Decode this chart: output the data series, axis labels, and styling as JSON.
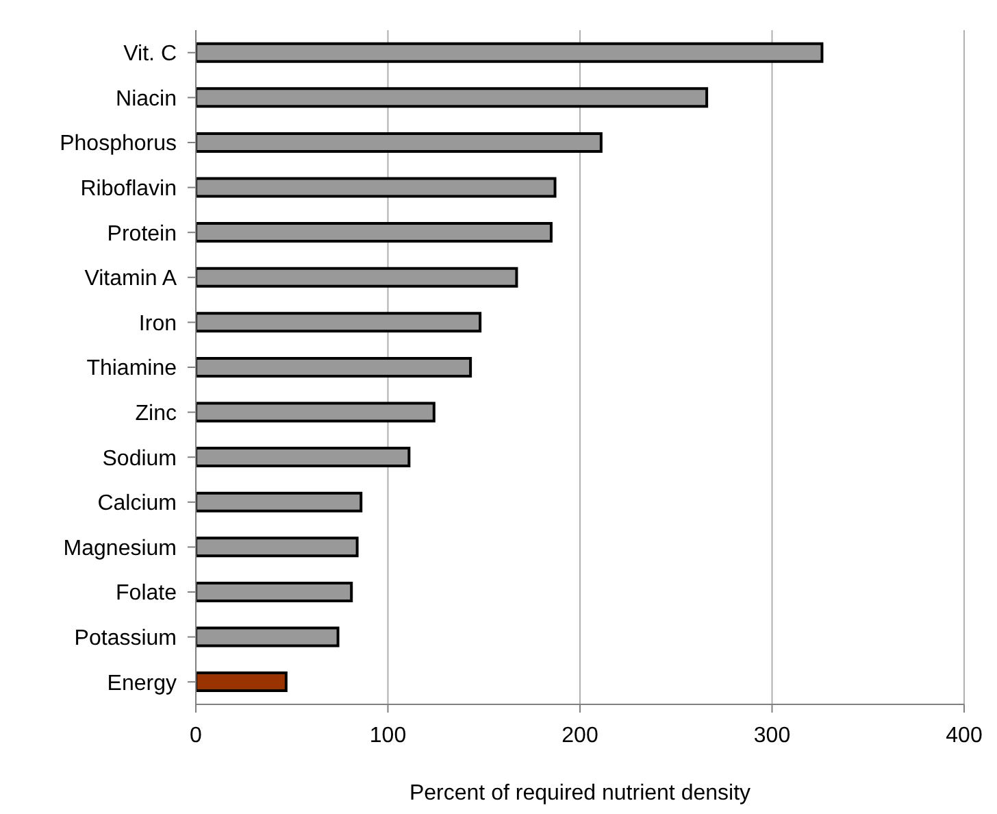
{
  "chart_data": {
    "type": "bar",
    "orientation": "horizontal",
    "xlabel": "Percent of required nutrient density",
    "categories": [
      "Vit. C",
      "Niacin",
      "Phosphorus",
      "Riboflavin",
      "Protein",
      "Vitamin A",
      "Iron",
      "Thiamine",
      "Zinc",
      "Sodium",
      "Calcium",
      "Magnesium",
      "Folate",
      "Potassium",
      "Energy"
    ],
    "values": [
      326,
      266,
      211,
      187,
      185,
      167,
      148,
      143,
      124,
      111,
      86,
      84,
      81,
      74,
      47
    ],
    "colors": [
      "#999999",
      "#999999",
      "#999999",
      "#999999",
      "#999999",
      "#999999",
      "#999999",
      "#999999",
      "#999999",
      "#999999",
      "#999999",
      "#999999",
      "#999999",
      "#999999",
      "#993300"
    ],
    "xlim": [
      0,
      400
    ],
    "xticks": [
      0,
      100,
      200,
      300,
      400
    ],
    "grid": "x",
    "legend": false
  }
}
